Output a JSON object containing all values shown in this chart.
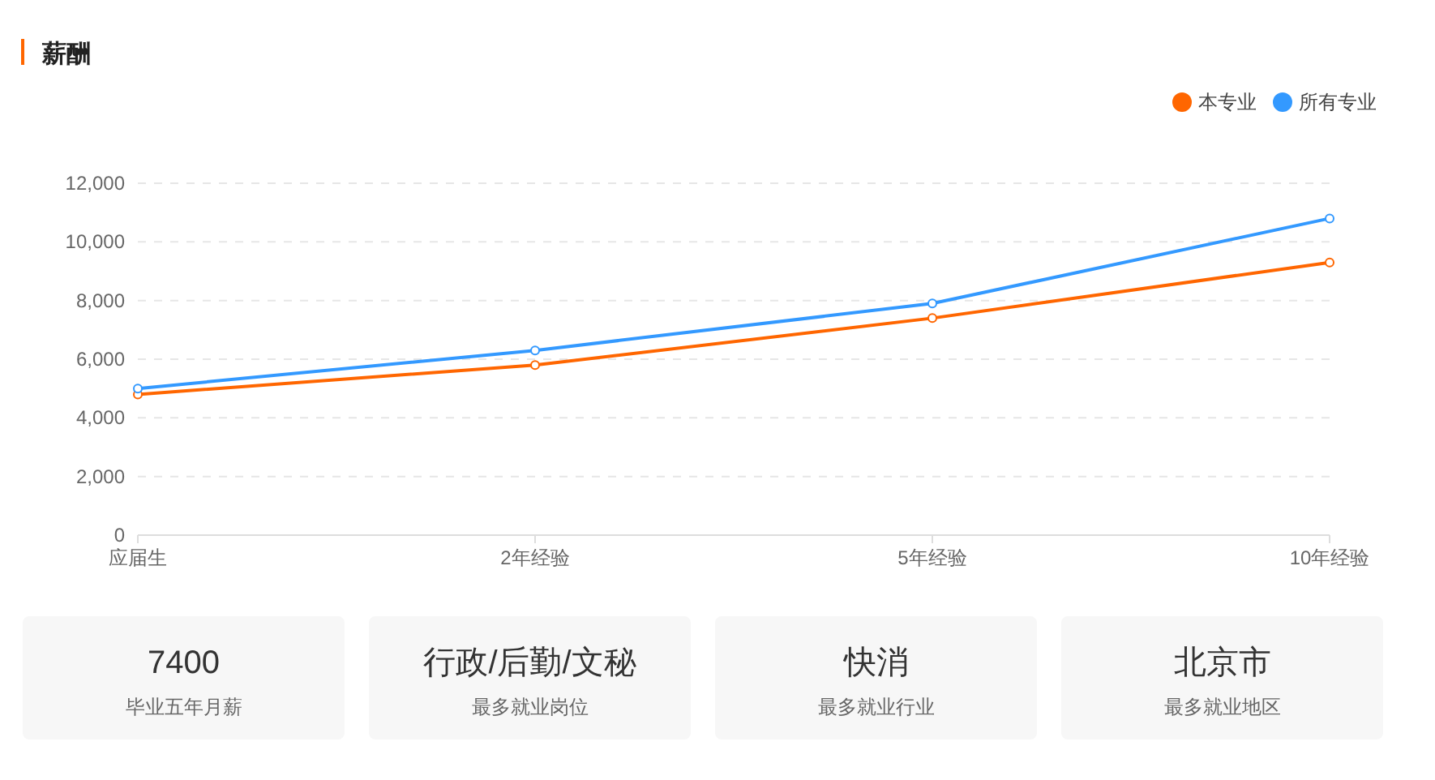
{
  "chart_data": [
    {
      "type": "line",
      "title": "薪酬",
      "categories": [
        "应届生",
        "2年经验",
        "5年经验",
        "10年经验"
      ],
      "series": [
        {
          "name": "本专业",
          "color": "#ff6600",
          "values": [
            4800,
            5800,
            7400,
            9300
          ]
        },
        {
          "name": "所有专业",
          "color": "#3399ff",
          "values": [
            5000,
            6300,
            7900,
            10800
          ]
        }
      ],
      "ylim": [
        0,
        12000
      ],
      "yticks": [
        0,
        {
          "value": 2000,
          "label": "2,000"
        },
        {
          "value": 4000,
          "label": "4,000"
        },
        {
          "value": 6000,
          "label": "6,000"
        },
        {
          "value": 8000,
          "label": "8,000"
        },
        {
          "value": 10000,
          "label": "10,000"
        },
        {
          "value": 12000,
          "label": "12,000"
        }
      ],
      "grid": "y",
      "legend": "top right",
      "marker": "circle"
    },
    {
      "type": "other",
      "annotations": [
        "7400",
        "毕业五年月薪",
        "行政/后勤/文秘",
        "最多就业岗位",
        "快消",
        "最多就业行业",
        "北京市",
        "最多就业地区"
      ]
    }
  ]
}
